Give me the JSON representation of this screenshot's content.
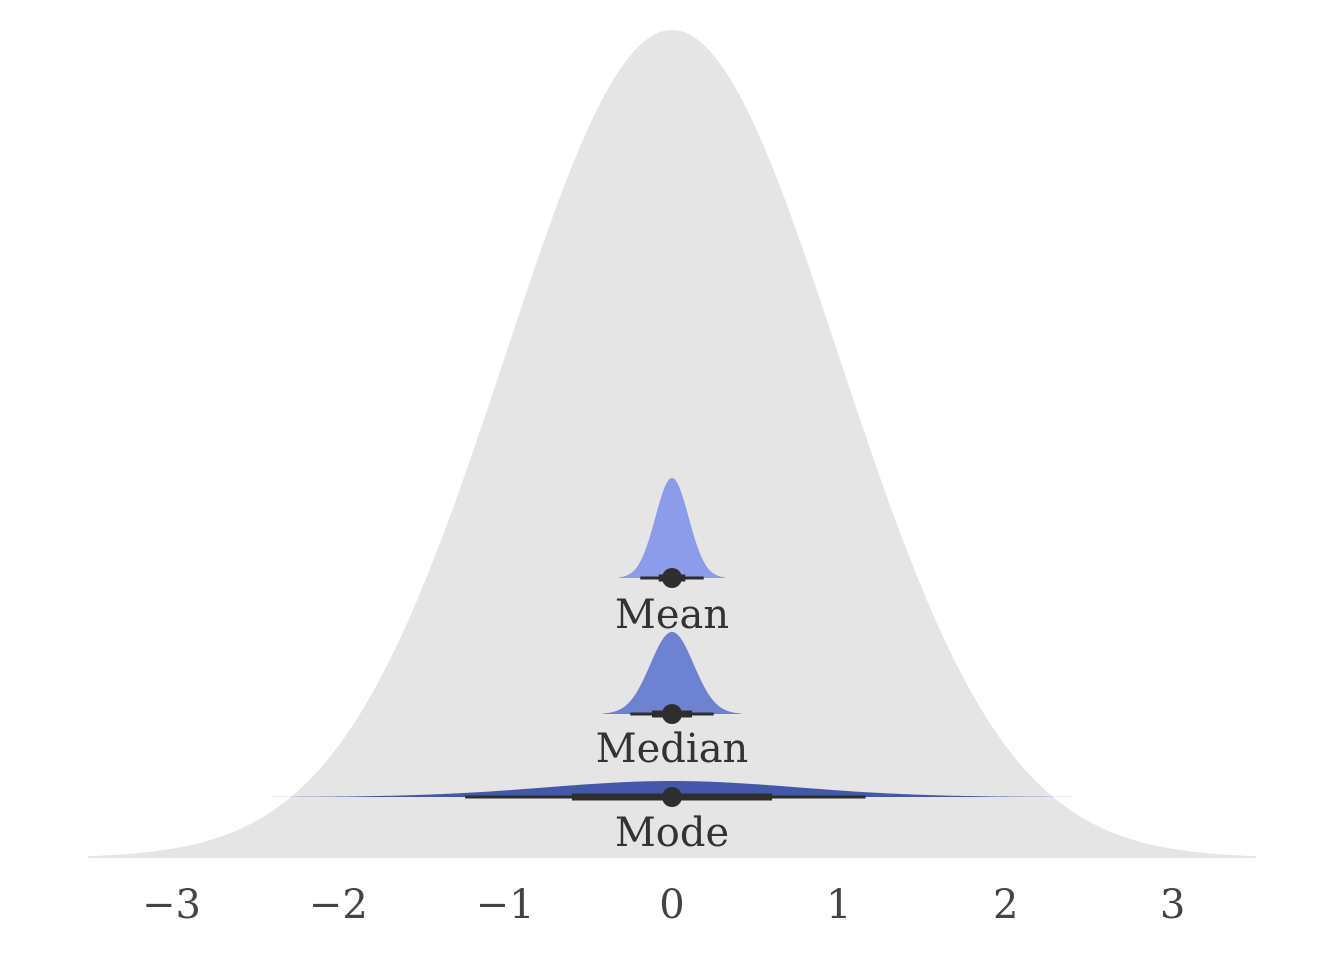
{
  "chart_data": {
    "type": "area",
    "title": "",
    "xlabel": "",
    "ylabel": "",
    "xlim": [
      -3.5,
      3.5
    ],
    "xticks": [
      -3,
      -2,
      -1,
      0,
      1,
      2,
      3
    ],
    "xtick_labels": [
      "−3",
      "−2",
      "−1",
      "0",
      "1",
      "2",
      "3"
    ],
    "grid": false,
    "background_distribution": {
      "kind": "normal",
      "mean": 0,
      "sd": 1,
      "color": "#e5e5e5"
    },
    "series": [
      {
        "label": "Mean",
        "color": "#8c9bea",
        "point": 0,
        "inner_interval": [
          -0.08,
          0.08
        ],
        "outer_interval": [
          -0.19,
          0.19
        ],
        "density_sd": 0.1
      },
      {
        "label": "Median",
        "color": "#6e82d2",
        "point": 0,
        "inner_interval": [
          -0.12,
          0.12
        ],
        "outer_interval": [
          -0.25,
          0.25
        ],
        "density_sd": 0.13
      },
      {
        "label": "Mode",
        "color": "#4358a8",
        "point": 0,
        "inner_interval": [
          -0.6,
          0.6
        ],
        "outer_interval": [
          -1.24,
          1.16
        ],
        "density_sd": 0.75
      }
    ]
  }
}
